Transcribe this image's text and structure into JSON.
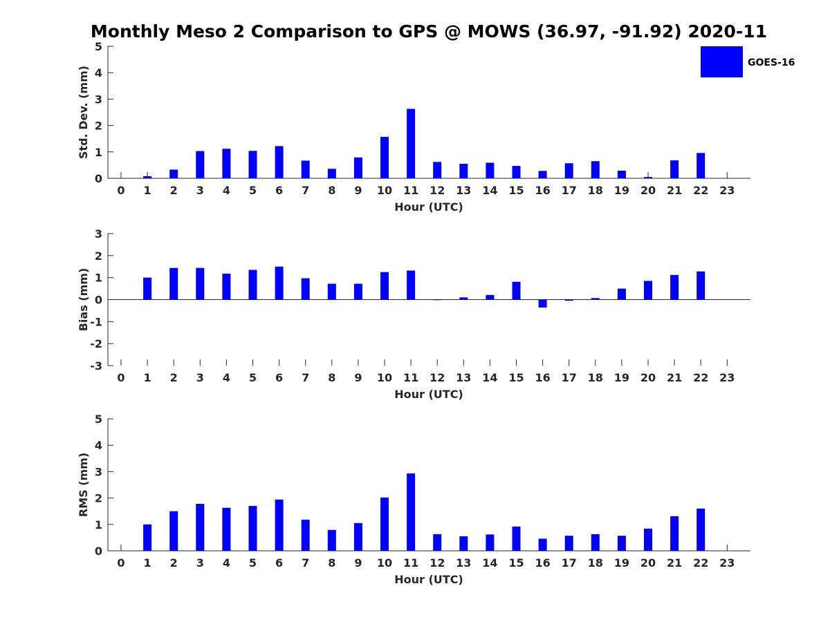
{
  "chart_data": {
    "title": "Monthly Meso 2 Comparison to GPS @ MOWS (36.97, -91.92) 2020-11",
    "bar_color": "#0000ff",
    "legend": {
      "entries": [
        "GOES-16"
      ],
      "position": "top-right"
    },
    "panels": [
      {
        "type": "bar",
        "xlabel": "Hour (UTC)",
        "ylabel": "Std. Dev. (mm)",
        "ylim": [
          0,
          5
        ],
        "yticks": [
          "0",
          "1",
          "2",
          "3",
          "4",
          "5"
        ],
        "categories": [
          "0",
          "1",
          "2",
          "3",
          "4",
          "5",
          "6",
          "7",
          "8",
          "9",
          "10",
          "11",
          "12",
          "13",
          "14",
          "15",
          "16",
          "17",
          "18",
          "19",
          "20",
          "21",
          "22",
          "23"
        ],
        "series": [
          {
            "name": "GOES-16",
            "values": [
              null,
              0.08,
              0.33,
              1.03,
              1.12,
              1.04,
              1.22,
              0.67,
              0.36,
              0.79,
              1.57,
              2.63,
              0.62,
              0.55,
              0.59,
              0.47,
              0.28,
              0.57,
              0.65,
              0.29,
              0.05,
              0.68,
              0.96,
              null
            ]
          }
        ]
      },
      {
        "type": "bar",
        "xlabel": "Hour (UTC)",
        "ylabel": "Bias (mm)",
        "ylim": [
          -3,
          3
        ],
        "yticks": [
          "-3",
          "-2",
          "-1",
          "0",
          "1",
          "2",
          "3"
        ],
        "categories": [
          "0",
          "1",
          "2",
          "3",
          "4",
          "5",
          "6",
          "7",
          "8",
          "9",
          "10",
          "11",
          "12",
          "13",
          "14",
          "15",
          "16",
          "17",
          "18",
          "19",
          "20",
          "21",
          "22",
          "23"
        ],
        "series": [
          {
            "name": "GOES-16",
            "values": [
              null,
              1.0,
              1.44,
              1.44,
              1.18,
              1.35,
              1.5,
              0.97,
              0.72,
              0.72,
              1.25,
              1.32,
              0.0,
              0.1,
              0.21,
              0.81,
              -0.36,
              -0.05,
              0.07,
              0.5,
              0.85,
              1.12,
              1.28,
              null
            ]
          }
        ]
      },
      {
        "type": "bar",
        "xlabel": "Hour (UTC)",
        "ylabel": "RMS (mm)",
        "ylim": [
          0,
          5
        ],
        "yticks": [
          "0",
          "1",
          "2",
          "3",
          "4",
          "5"
        ],
        "categories": [
          "0",
          "1",
          "2",
          "3",
          "4",
          "5",
          "6",
          "7",
          "8",
          "9",
          "10",
          "11",
          "12",
          "13",
          "14",
          "15",
          "16",
          "17",
          "18",
          "19",
          "20",
          "21",
          "22",
          "23"
        ],
        "series": [
          {
            "name": "GOES-16",
            "values": [
              null,
              1.0,
              1.5,
              1.78,
              1.63,
              1.7,
              1.94,
              1.18,
              0.79,
              1.05,
              2.02,
              2.93,
              0.63,
              0.55,
              0.62,
              0.92,
              0.46,
              0.57,
              0.63,
              0.57,
              0.84,
              1.31,
              1.6,
              null
            ]
          }
        ]
      }
    ]
  }
}
